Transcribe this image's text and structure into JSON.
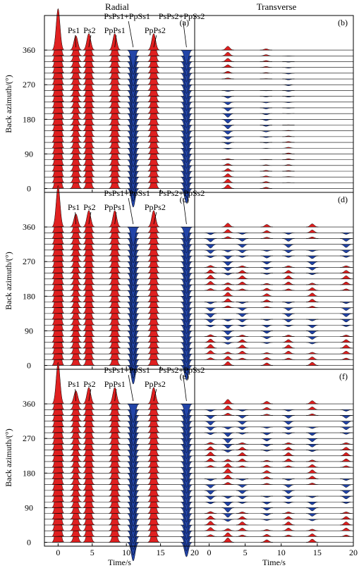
{
  "figure": {
    "column_titles": [
      "Radial",
      "Transverse"
    ],
    "ylabel": "Back azimuth/(°)",
    "xlabel": "Time/s",
    "colors": {
      "positive": "#e02020",
      "negative": "#2244a8",
      "trace": "#000000"
    }
  },
  "chart_data": [
    {
      "type": "line",
      "panel": "a",
      "component": "Radial",
      "title": "Radial",
      "panel_label": "(a)",
      "xlim": [
        -2,
        20
      ],
      "ylim": [
        -10,
        450
      ],
      "xticks": [
        0,
        5,
        10,
        15,
        20
      ],
      "yticks": [
        0,
        90,
        180,
        270,
        360
      ],
      "xlabel": "Time/s",
      "ylabel": "Back azimuth/(°)",
      "back_azimuths": [
        0,
        15,
        30,
        45,
        60,
        75,
        90,
        105,
        120,
        135,
        150,
        165,
        180,
        195,
        210,
        225,
        240,
        255,
        270,
        285,
        300,
        315,
        330,
        345,
        360
      ],
      "phases": [
        {
          "label": "P",
          "time": 0,
          "amplitude": 1.0
        },
        {
          "label": "Ps1",
          "time": 2.6,
          "amplitude": 0.35
        },
        {
          "label": "Ps2",
          "time": 4.5,
          "amplitude": 0.4
        },
        {
          "label": "PpPs1",
          "time": 8.3,
          "amplitude": 0.4
        },
        {
          "label": "PsPs1+PpSs1",
          "time": 11.0,
          "amplitude": -0.45
        },
        {
          "label": "PpPs2",
          "time": 14.0,
          "amplitude": 0.4
        },
        {
          "label": "PsPs2+PpSs2",
          "time": 18.8,
          "amplitude": -0.35
        }
      ],
      "annotations": [
        "Ps1",
        "Ps2",
        "PpPs1",
        "PsPs1+PpSs1",
        "PpPs2",
        "PsPs2+PpSs2"
      ]
    },
    {
      "type": "line",
      "panel": "b",
      "component": "Transverse",
      "title": "Transverse",
      "panel_label": "(b)",
      "xlim": [
        -2,
        20
      ],
      "ylim": [
        -10,
        450
      ],
      "back_azimuths": [
        0,
        15,
        30,
        45,
        60,
        75,
        90,
        105,
        120,
        135,
        150,
        165,
        180,
        195,
        210,
        225,
        240,
        255,
        270,
        285,
        300,
        315,
        330,
        345,
        360
      ],
      "phases": [
        {
          "time": 2.6,
          "amplitude": 0.12,
          "pattern": "cos1"
        },
        {
          "time": 7.9,
          "amplitude": 0.04,
          "pattern": "cos1"
        },
        {
          "time": 11.0,
          "amplitude": 0.03,
          "pattern": "sin1"
        }
      ]
    },
    {
      "type": "line",
      "panel": "c",
      "component": "Radial",
      "panel_label": "(c)",
      "xlim": [
        -2,
        20
      ],
      "ylim": [
        -10,
        450
      ],
      "xticks": [
        0,
        5,
        10,
        15,
        20
      ],
      "yticks": [
        0,
        90,
        180,
        270,
        360
      ],
      "xlabel": "Time/s",
      "ylabel": "Back azimuth/(°)",
      "back_azimuths": [
        0,
        15,
        30,
        45,
        60,
        75,
        90,
        105,
        120,
        135,
        150,
        165,
        180,
        195,
        210,
        225,
        240,
        255,
        270,
        285,
        300,
        315,
        330,
        345,
        360
      ],
      "phases": [
        {
          "label": "P",
          "time": 0,
          "amplitude": 1.0
        },
        {
          "label": "Ps1",
          "time": 2.6,
          "amplitude": 0.32
        },
        {
          "label": "Ps2",
          "time": 4.5,
          "amplitude": 0.4
        },
        {
          "label": "PpPs1",
          "time": 8.3,
          "amplitude": 0.4
        },
        {
          "label": "PsPs1+PpSs1",
          "time": 11.0,
          "amplitude": -0.45
        },
        {
          "label": "PpPs2",
          "time": 14.0,
          "amplitude": 0.4
        },
        {
          "label": "PsPs2+PpSs2",
          "time": 18.8,
          "amplitude": -0.35
        }
      ],
      "annotations": [
        "Ps1",
        "Ps2",
        "PpPs1",
        "PsPs1+PpSs1",
        "PpPs2",
        "PsPs2+PpSs2"
      ]
    },
    {
      "type": "line",
      "panel": "d",
      "component": "Transverse",
      "panel_label": "(d)",
      "xlim": [
        -2,
        20
      ],
      "ylim": [
        -10,
        450
      ],
      "back_azimuths": [
        0,
        15,
        30,
        45,
        60,
        75,
        90,
        105,
        120,
        135,
        150,
        165,
        180,
        195,
        210,
        225,
        240,
        255,
        270,
        285,
        300,
        315,
        330,
        345,
        360
      ],
      "phases": [
        {
          "time": 0.2,
          "amplitude": 0.12,
          "pattern": "sin2"
        },
        {
          "time": 2.6,
          "amplitude": 0.12,
          "pattern": "cos2"
        },
        {
          "time": 4.6,
          "amplitude": 0.1,
          "pattern": "sin2"
        },
        {
          "time": 8.0,
          "amplitude": 0.08,
          "pattern": "cos2"
        },
        {
          "time": 11.0,
          "amplitude": 0.1,
          "pattern": "sin2"
        },
        {
          "time": 14.3,
          "amplitude": 0.1,
          "pattern": "cos2"
        },
        {
          "time": 19.0,
          "amplitude": 0.1,
          "pattern": "sin2"
        }
      ]
    },
    {
      "type": "line",
      "panel": "e",
      "component": "Radial",
      "panel_label": "(e)",
      "xlim": [
        -2,
        20
      ],
      "ylim": [
        -10,
        450
      ],
      "xticks": [
        0,
        5,
        10,
        15,
        20
      ],
      "yticks": [
        0,
        90,
        180,
        270,
        360
      ],
      "xlabel": "Time/s",
      "ylabel": "Back azimuth/(°)",
      "back_azimuths": [
        0,
        15,
        30,
        45,
        60,
        75,
        90,
        105,
        120,
        135,
        150,
        165,
        180,
        195,
        210,
        225,
        240,
        255,
        270,
        285,
        300,
        315,
        330,
        345,
        360
      ],
      "phases": [
        {
          "label": "P",
          "time": 0,
          "amplitude": 1.0
        },
        {
          "label": "Ps1",
          "time": 2.6,
          "amplitude": 0.32
        },
        {
          "label": "Ps2",
          "time": 4.5,
          "amplitude": 0.4
        },
        {
          "label": "PpPs1",
          "time": 8.3,
          "amplitude": 0.4
        },
        {
          "label": "PsPs1+PpSs1",
          "time": 11.0,
          "amplitude": -0.45
        },
        {
          "label": "PpPs2",
          "time": 14.0,
          "amplitude": 0.4
        },
        {
          "label": "PsPs2+PpSs2",
          "time": 18.8,
          "amplitude": -0.35
        }
      ],
      "annotations": [
        "Ps1",
        "Ps2",
        "PpPs1",
        "PsPs1+PpSs1",
        "PpPs2",
        "PsPs2+PpSs2"
      ]
    },
    {
      "type": "line",
      "panel": "f",
      "component": "Transverse",
      "panel_label": "(f)",
      "xlim": [
        -2,
        20
      ],
      "ylim": [
        -10,
        450
      ],
      "xticks": [
        0,
        5,
        10,
        15,
        20
      ],
      "xlabel": "Time/s",
      "back_azimuths": [
        0,
        15,
        30,
        45,
        60,
        75,
        90,
        105,
        120,
        135,
        150,
        165,
        180,
        195,
        210,
        225,
        240,
        255,
        270,
        285,
        300,
        315,
        330,
        345,
        360
      ],
      "phases": [
        {
          "time": 0.2,
          "amplitude": 0.12,
          "pattern": "sin2"
        },
        {
          "time": 2.6,
          "amplitude": 0.14,
          "pattern": "cos2"
        },
        {
          "time": 4.6,
          "amplitude": 0.1,
          "pattern": "sin2"
        },
        {
          "time": 8.0,
          "amplitude": 0.08,
          "pattern": "cos2"
        },
        {
          "time": 11.0,
          "amplitude": 0.1,
          "pattern": "sin2"
        },
        {
          "time": 14.3,
          "amplitude": 0.1,
          "pattern": "cos2"
        },
        {
          "time": 19.0,
          "amplitude": 0.1,
          "pattern": "sin2"
        }
      ]
    }
  ]
}
